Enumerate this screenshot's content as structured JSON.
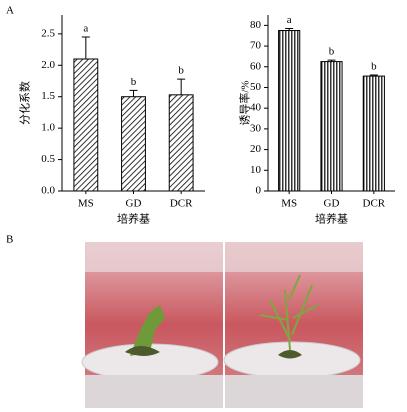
{
  "panel_labels": [
    "A",
    "B"
  ],
  "chart_data": [
    {
      "type": "bar",
      "ylabel": "分化系数",
      "xlabel": "培养基",
      "categories": [
        "MS",
        "GD",
        "DCR"
      ],
      "values": [
        2.1,
        1.5,
        1.53
      ],
      "errors": [
        0.35,
        0.1,
        0.25
      ],
      "letters": [
        "a",
        "b",
        "b"
      ],
      "ylim": [
        0,
        2.8
      ],
      "yticks": [
        {
          "value": 0,
          "label": "0.0"
        },
        0.5,
        {
          "value": 1,
          "label": "1.0"
        },
        1.5,
        {
          "value": 2,
          "label": "2.0"
        },
        2.5
      ],
      "hatch": "diagonal",
      "color": "#000000"
    },
    {
      "type": "bar",
      "ylabel": "诱导率/%",
      "xlabel": "培养基",
      "categories": [
        "MS",
        "GD",
        "DCR"
      ],
      "values": [
        77.5,
        62.5,
        55.5
      ],
      "errors": [
        1,
        0.7,
        0.5
      ],
      "letters": [
        "a",
        "b",
        "b"
      ],
      "ylim": [
        0,
        85
      ],
      "yticks": [
        0,
        10,
        20,
        30,
        40,
        50,
        60,
        70,
        80
      ],
      "hatch": "vertical",
      "color": "#000000"
    }
  ]
}
